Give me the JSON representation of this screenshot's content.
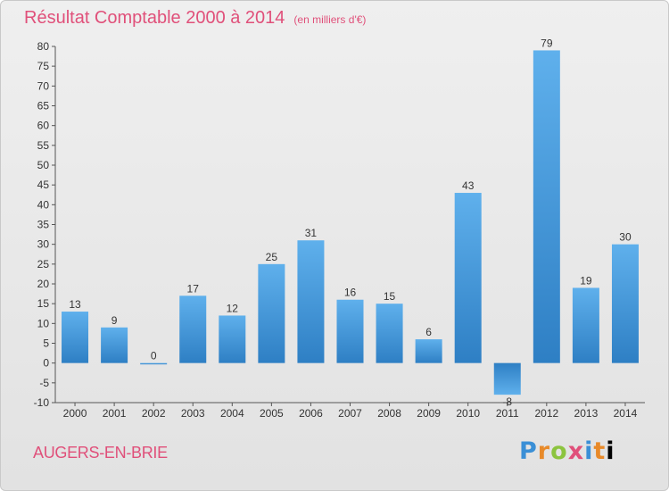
{
  "header": {
    "title": "Résultat Comptable 2000 à 2014",
    "subtitle": "(en milliers d'€)"
  },
  "footer": {
    "town": "AUGERS-EN-BRIE",
    "logo_letters": [
      "P",
      "r",
      "o",
      "x",
      "i",
      "t",
      "i"
    ]
  },
  "chart_data": {
    "type": "bar",
    "title": "Résultat Comptable 2000 à 2014",
    "subtitle": "(en milliers d'€)",
    "categories": [
      "2000",
      "2001",
      "2002",
      "2003",
      "2004",
      "2005",
      "2006",
      "2007",
      "2008",
      "2009",
      "2010",
      "2011",
      "2012",
      "2013",
      "2014"
    ],
    "values": [
      13,
      9,
      0,
      17,
      12,
      25,
      31,
      16,
      15,
      6,
      43,
      -8,
      79,
      19,
      30
    ],
    "ylim": [
      -10,
      80
    ],
    "yticks": [
      -10,
      -5,
      0,
      5,
      10,
      15,
      20,
      25,
      30,
      35,
      40,
      45,
      50,
      55,
      60,
      65,
      70,
      75,
      80
    ],
    "grid": false,
    "bar_color": "#3f97d8"
  }
}
